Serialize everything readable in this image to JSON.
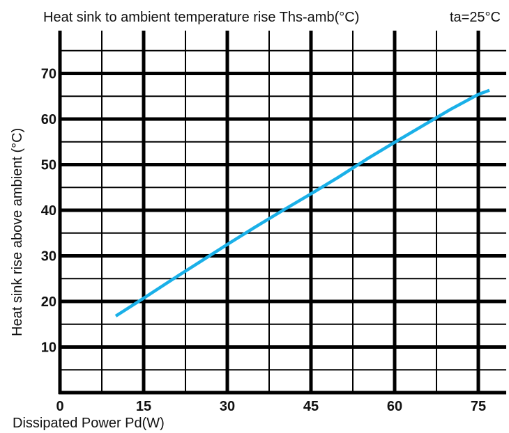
{
  "chart_data": {
    "type": "line",
    "title": "Heat sink to ambient temperature rise Ths-amb(°C)",
    "condition": "ta=25°C",
    "xlabel": "Dissipated Power Pd(W)",
    "ylabel": "Heat sink rise above ambient (°C)",
    "xlim": [
      0,
      80
    ],
    "ylim": [
      0,
      80
    ],
    "x_major_ticks": [
      0,
      15,
      30,
      45,
      60,
      75
    ],
    "x_tick_labels": [
      "0",
      "15",
      "30",
      "45",
      "60",
      "75"
    ],
    "x_minor_ticks": [
      7.5,
      22.5,
      37.5,
      52.5,
      67.5
    ],
    "y_major_ticks": [
      10,
      20,
      30,
      40,
      50,
      60,
      70
    ],
    "y_tick_labels": [
      "10",
      "20",
      "30",
      "40",
      "50",
      "60",
      "70"
    ],
    "y_minor_ticks": [
      5,
      15,
      25,
      35,
      45,
      55,
      65,
      75
    ],
    "grid": true,
    "series": [
      {
        "color": "#1ab0e8",
        "x": [
          10,
          15,
          20,
          25,
          30,
          35,
          40,
          45,
          50,
          55,
          60,
          65,
          70,
          75,
          77
        ],
        "y": [
          16.8,
          20.7,
          24.7,
          28.6,
          32.5,
          36.3,
          40.0,
          43.6,
          47.3,
          51.2,
          54.9,
          58.5,
          62.1,
          65.4,
          66.3
        ]
      }
    ]
  }
}
